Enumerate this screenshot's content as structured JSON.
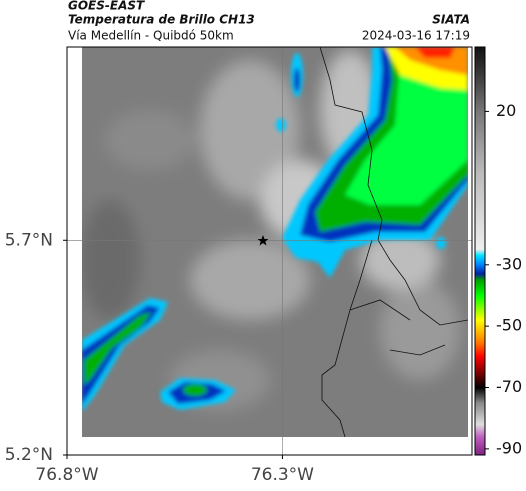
{
  "header": {
    "title": "GOES-EAST",
    "subtitle": "Temperatura de Brillo CH13",
    "region": "Vía Medellín - Quibdó 50km",
    "source": "SIATA",
    "timestamp": "2024-03-16 17:19"
  },
  "map": {
    "latlim": [
      5.2,
      6.15
    ],
    "lonlim": [
      -76.8,
      -75.86
    ],
    "latticks": [
      {
        "value": 5.2,
        "label": "5.2°N"
      },
      {
        "value": 5.7,
        "label": "5.7°N"
      }
    ],
    "lonticks": [
      {
        "value": -76.8,
        "label": "76.8°W"
      },
      {
        "value": -76.3,
        "label": "76.3°W"
      }
    ]
  },
  "colorbar": {
    "lim": [
      -92,
      41
    ],
    "ticks": [
      20,
      -30,
      -50,
      -70,
      -90
    ]
  }
}
